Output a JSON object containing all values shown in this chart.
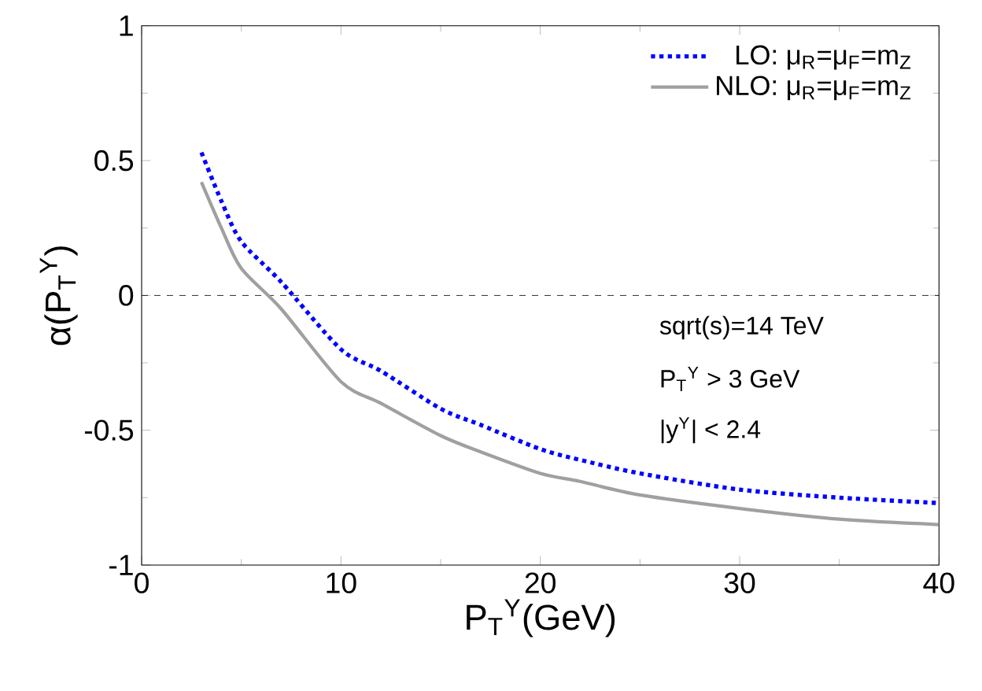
{
  "chart_data": {
    "type": "line",
    "xlabel": "P$_{T}$$^{Υ}$(GeV)",
    "ylabel": "α(P$_{T}$$^{Υ}$)",
    "xlim": [
      0,
      40
    ],
    "ylim": [
      -1,
      1
    ],
    "xticks": [
      0,
      10,
      20,
      30,
      40
    ],
    "yticks": [
      -1,
      -0.5,
      0,
      0.5,
      1
    ],
    "legend": "top right",
    "grid": false,
    "series": [
      {
        "name": "LO: μ$_{R}$=μ$_{F}$=m$_{Z}$",
        "color": "#0000ff",
        "line_style": "dotted",
        "x": [
          3,
          4,
          5,
          7,
          10,
          12,
          15,
          17,
          20,
          22,
          25,
          30,
          35,
          40
        ],
        "values": [
          0.53,
          0.35,
          0.2,
          0.05,
          -0.2,
          -0.28,
          -0.42,
          -0.48,
          -0.57,
          -0.61,
          -0.66,
          -0.72,
          -0.75,
          -0.77
        ]
      },
      {
        "name": "NLO: μ$_{R}$=μ$_{F}$=m$_{Z}$",
        "color": "#a0a0a0",
        "line_style": "solid",
        "x": [
          3,
          4,
          5,
          7,
          10,
          12,
          15,
          17,
          20,
          22,
          25,
          30,
          35,
          40
        ],
        "values": [
          0.42,
          0.25,
          0.1,
          -0.05,
          -0.32,
          -0.4,
          -0.52,
          -0.58,
          -0.66,
          -0.69,
          -0.74,
          -0.79,
          -0.83,
          -0.85
        ]
      }
    ],
    "ref_lines": [
      {
        "axis": "y",
        "value": 0,
        "color": "#000000",
        "line_style": "dashed"
      }
    ],
    "annotations": [
      "sqrt(s)=14 TeV",
      "P$_{T}$$^{Υ}$  > 3 GeV",
      "|y$^{Υ}$| < 2.4"
    ]
  }
}
